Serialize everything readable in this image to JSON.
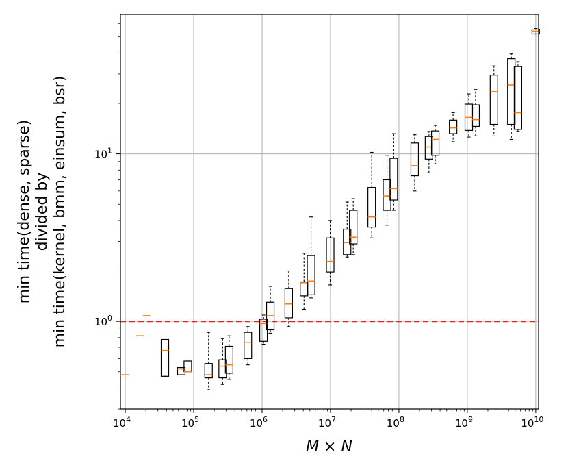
{
  "chart_data": {
    "type": "box",
    "xlabel": "M × N",
    "ylabel_lines": [
      "min time(dense, sparse)",
      "divided by",
      "min time(kernel, bmm, einsum, bsr)"
    ],
    "x_scale": "log",
    "y_scale": "log",
    "xlim": [
      8500,
      11000000000
    ],
    "ylim": [
      0.3,
      68
    ],
    "x_ticks": [
      {
        "value": 10000,
        "base": "10",
        "exp": "4"
      },
      {
        "value": 100000,
        "base": "10",
        "exp": "5"
      },
      {
        "value": 1000000,
        "base": "10",
        "exp": "6"
      },
      {
        "value": 10000000,
        "base": "10",
        "exp": "7"
      },
      {
        "value": 100000000,
        "base": "10",
        "exp": "8"
      },
      {
        "value": 1000000000,
        "base": "10",
        "exp": "9"
      },
      {
        "value": 10000000000,
        "base": "10",
        "exp": "10"
      }
    ],
    "y_ticks": [
      {
        "value": 1,
        "base": "10",
        "exp": "0"
      },
      {
        "value": 10,
        "base": "10",
        "exp": "1"
      }
    ],
    "grid": true,
    "reference_line": {
      "y": 1.0,
      "color": "#e8201f",
      "style": "dashed"
    },
    "colors": {
      "box": "#000000",
      "median": "#ff7f0e",
      "reference": "#e8201f",
      "grid": "#b0b0b0"
    },
    "boxes": [
      {
        "x": 10000,
        "whislo": 0.48,
        "q1": 0.48,
        "med": 0.48,
        "q3": 0.48,
        "whishi": 0.48
      },
      {
        "x": 16400,
        "whislo": 0.82,
        "q1": 0.82,
        "med": 0.82,
        "q3": 0.82,
        "whishi": 0.82
      },
      {
        "x": 20500,
        "whislo": 1.08,
        "q1": 1.08,
        "med": 1.08,
        "q3": 1.08,
        "whishi": 1.08
      },
      {
        "x": 38000,
        "whislo": 0.47,
        "q1": 0.47,
        "med": 0.67,
        "q3": 0.78,
        "whishi": 0.78
      },
      {
        "x": 66000,
        "whislo": 0.48,
        "q1": 0.48,
        "med": 0.52,
        "q3": 0.53,
        "whishi": 0.53
      },
      {
        "x": 82000,
        "whislo": 0.5,
        "q1": 0.5,
        "med": 0.5,
        "q3": 0.58,
        "whishi": 0.58
      },
      {
        "x": 165000,
        "whislo": 0.39,
        "q1": 0.46,
        "med": 0.48,
        "q3": 0.56,
        "whishi": 0.86
      },
      {
        "x": 265000,
        "whislo": 0.42,
        "q1": 0.46,
        "med": 0.54,
        "q3": 0.59,
        "whishi": 0.79
      },
      {
        "x": 330000,
        "whislo": 0.45,
        "q1": 0.49,
        "med": 0.55,
        "q3": 0.71,
        "whishi": 0.82
      },
      {
        "x": 620000,
        "whislo": 0.55,
        "q1": 0.6,
        "med": 0.75,
        "q3": 0.86,
        "whishi": 0.93
      },
      {
        "x": 1050000,
        "whislo": 0.73,
        "q1": 0.76,
        "med": 0.97,
        "q3": 1.03,
        "whishi": 1.09
      },
      {
        "x": 1320000,
        "whislo": 0.85,
        "q1": 0.89,
        "med": 1.08,
        "q3": 1.3,
        "whishi": 1.62
      },
      {
        "x": 2450000,
        "whislo": 0.93,
        "q1": 1.05,
        "med": 1.27,
        "q3": 1.57,
        "whishi": 2.0
      },
      {
        "x": 4100000,
        "whislo": 1.18,
        "q1": 1.42,
        "med": 1.7,
        "q3": 1.72,
        "whishi": 2.55
      },
      {
        "x": 5200000,
        "whislo": 1.38,
        "q1": 1.44,
        "med": 1.74,
        "q3": 2.47,
        "whishi": 4.2
      },
      {
        "x": 9900000,
        "whislo": 1.65,
        "q1": 1.97,
        "med": 2.28,
        "q3": 3.15,
        "whishi": 4.0
      },
      {
        "x": 17500000,
        "whislo": 2.42,
        "q1": 2.5,
        "med": 2.95,
        "q3": 3.55,
        "whishi": 5.15
      },
      {
        "x": 21500000,
        "whislo": 2.5,
        "q1": 2.9,
        "med": 3.18,
        "q3": 4.6,
        "whishi": 5.4
      },
      {
        "x": 40000000,
        "whislo": 3.15,
        "q1": 3.65,
        "med": 4.2,
        "q3": 6.3,
        "whishi": 10.2
      },
      {
        "x": 67000000,
        "whislo": 3.75,
        "q1": 4.6,
        "med": 5.6,
        "q3": 7.0,
        "whishi": 9.8
      },
      {
        "x": 84000000,
        "whislo": 4.6,
        "q1": 5.3,
        "med": 6.2,
        "q3": 9.4,
        "whishi": 13.2
      },
      {
        "x": 170000000,
        "whislo": 6.0,
        "q1": 7.4,
        "med": 8.5,
        "q3": 11.6,
        "whishi": 13.0
      },
      {
        "x": 275000000,
        "whislo": 7.7,
        "q1": 9.3,
        "med": 11.0,
        "q3": 12.7,
        "whishi": 13.6
      },
      {
        "x": 340000000,
        "whislo": 8.7,
        "q1": 9.8,
        "med": 12.2,
        "q3": 13.7,
        "whishi": 14.8
      },
      {
        "x": 620000000,
        "whislo": 11.8,
        "q1": 13.2,
        "med": 14.3,
        "q3": 15.9,
        "whishi": 17.6
      },
      {
        "x": 1050000000,
        "whislo": 12.6,
        "q1": 13.8,
        "med": 16.5,
        "q3": 19.8,
        "whishi": 22.8
      },
      {
        "x": 1320000000,
        "whislo": 12.8,
        "q1": 14.6,
        "med": 16.0,
        "q3": 19.6,
        "whishi": 24.2
      },
      {
        "x": 2450000000,
        "whislo": 12.8,
        "q1": 15.0,
        "med": 23.5,
        "q3": 29.5,
        "whishi": 33.5
      },
      {
        "x": 4400000000,
        "whislo": 12.2,
        "q1": 15.0,
        "med": 25.8,
        "q3": 37.0,
        "whishi": 39.5
      },
      {
        "x": 5500000000,
        "whislo": 13.6,
        "q1": 14.0,
        "med": 17.6,
        "q3": 33.2,
        "whishi": 35.5
      },
      {
        "x": 10000000000,
        "whislo": 52.0,
        "q1": 52.0,
        "med": 54.0,
        "q3": 55.5,
        "whishi": 56.0
      }
    ]
  }
}
